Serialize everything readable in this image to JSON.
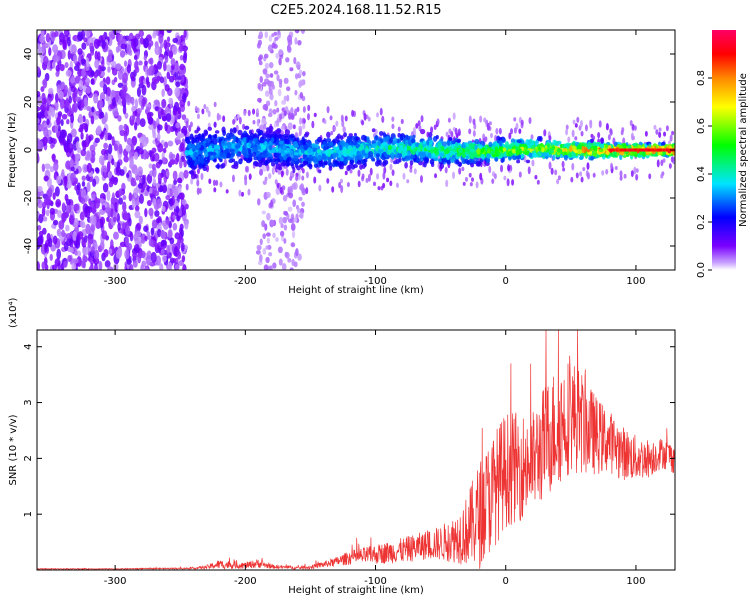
{
  "title": "C2E5.2024.168.11.52.R15",
  "colorbar": {
    "label": "Normalized spectral amplitude",
    "ticks": [
      "0.0",
      "0.2",
      "0.4",
      "0.6",
      "0.8"
    ],
    "colors": [
      "#ffffff",
      "#7a00ff",
      "#0000ff",
      "#00e5ff",
      "#00ff00",
      "#ffff00",
      "#ff8800",
      "#ff0000",
      "#ff0066"
    ]
  },
  "chart_data": [
    {
      "type": "heatmap",
      "xlabel": "Height of straight line (km)",
      "ylabel": "Frequency (Hz)",
      "xlim": [
        -360,
        130
      ],
      "ylim": [
        -50,
        50
      ],
      "xticks": [
        -300,
        -200,
        -100,
        0,
        100
      ],
      "yticks": [
        -40,
        -20,
        0,
        20,
        40
      ],
      "colormap_range": [
        0.0,
        1.0
      ],
      "features": [
        {
          "description": "broadband noise",
          "x_range": [
            -360,
            -245
          ],
          "y_range": [
            -50,
            50
          ],
          "amplitude": 0.1
        },
        {
          "description": "noise stripe",
          "x_range": [
            -190,
            -155
          ],
          "y_range": [
            -50,
            50
          ],
          "amplitude": 0.05
        },
        {
          "description": "main frequency band",
          "x_range": [
            -245,
            130
          ],
          "y_center": 0,
          "y_halfwidth_start": 12,
          "y_halfwidth_end": 3,
          "amplitude_start": 0.25,
          "amplitude_end": 0.95
        }
      ]
    },
    {
      "type": "line",
      "xlabel": "Height of straight line (km)",
      "ylabel": "SNR (10 * v/v)",
      "y_multiplier": "(x10⁴)",
      "xlim": [
        -360,
        130
      ],
      "ylim": [
        0,
        4.3
      ],
      "xticks": [
        -300,
        -200,
        -100,
        0,
        100
      ],
      "yticks": [
        1,
        2,
        3,
        4
      ],
      "color": "#ee3333",
      "x": [
        -360,
        -300,
        -240,
        -230,
        -220,
        -200,
        -190,
        -180,
        -160,
        -150,
        -140,
        -130,
        -120,
        -100,
        -80,
        -60,
        -50,
        -40,
        -30,
        -20,
        -10,
        0,
        10,
        20,
        30,
        40,
        50,
        60,
        70,
        80,
        90,
        100,
        110,
        120,
        130
      ],
      "y": [
        0.02,
        0.02,
        0.03,
        0.05,
        0.1,
        0.08,
        0.12,
        0.06,
        0.04,
        0.05,
        0.1,
        0.15,
        0.22,
        0.28,
        0.35,
        0.45,
        0.48,
        0.55,
        0.7,
        1.0,
        1.4,
        1.8,
        1.85,
        1.9,
        2.3,
        2.6,
        2.8,
        2.6,
        2.4,
        2.3,
        2.1,
        2.0,
        2.0,
        2.1,
        2.0
      ],
      "spread": [
        0.01,
        0.01,
        0.02,
        0.05,
        0.12,
        0.08,
        0.12,
        0.05,
        0.04,
        0.05,
        0.08,
        0.12,
        0.18,
        0.25,
        0.32,
        0.38,
        0.45,
        0.6,
        0.9,
        1.4,
        1.5,
        1.5,
        1.4,
        1.3,
        1.5,
        1.6,
        1.5,
        1.3,
        1.0,
        0.8,
        0.7,
        0.6,
        0.5,
        0.4,
        0.4
      ]
    }
  ]
}
